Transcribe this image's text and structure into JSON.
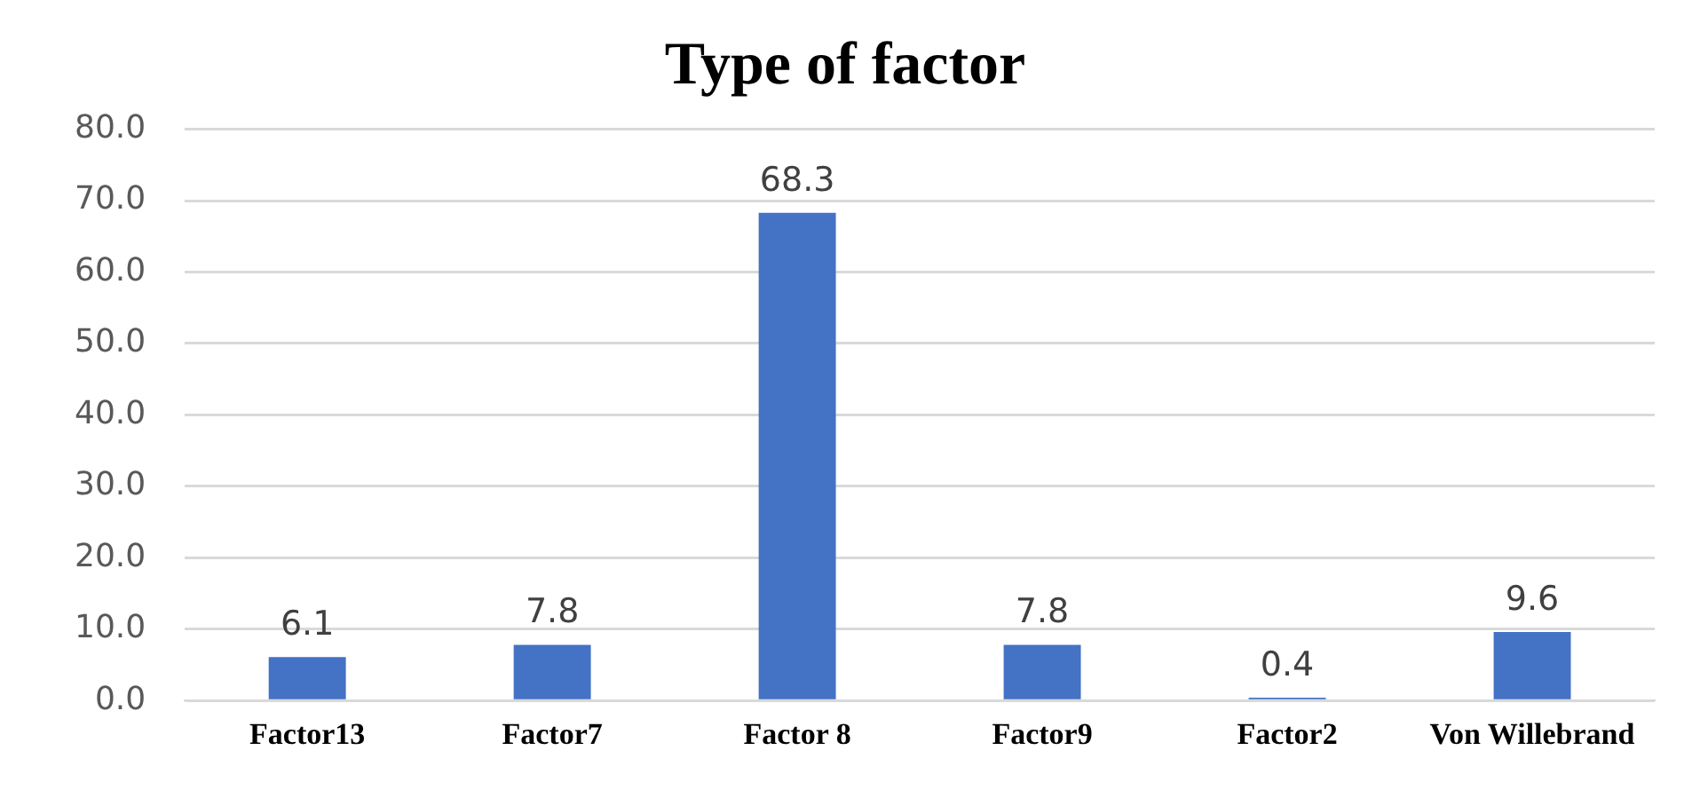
{
  "chart_data": {
    "type": "bar",
    "title": "Type of factor",
    "categories": [
      "Factor13",
      "Factor7",
      "Factor 8",
      "Factor9",
      "Factor2",
      "Von Willebrand"
    ],
    "values": [
      6.1,
      7.8,
      68.3,
      7.8,
      0.4,
      9.6
    ],
    "color": "#4472c4",
    "ylim": [
      0,
      80
    ],
    "yticks": [
      {
        "value": 0,
        "label": "0.0"
      },
      {
        "value": 10,
        "label": "10.0"
      },
      {
        "value": 20,
        "label": "20.0"
      },
      {
        "value": 30,
        "label": "30.0"
      },
      {
        "value": 40,
        "label": "40.0"
      },
      {
        "value": 50,
        "label": "50.0"
      },
      {
        "value": 60,
        "label": "60.0"
      },
      {
        "value": 70,
        "label": "70.0"
      },
      {
        "value": 80,
        "label": "80.0"
      }
    ],
    "grid": "y",
    "data_labels": true
  }
}
